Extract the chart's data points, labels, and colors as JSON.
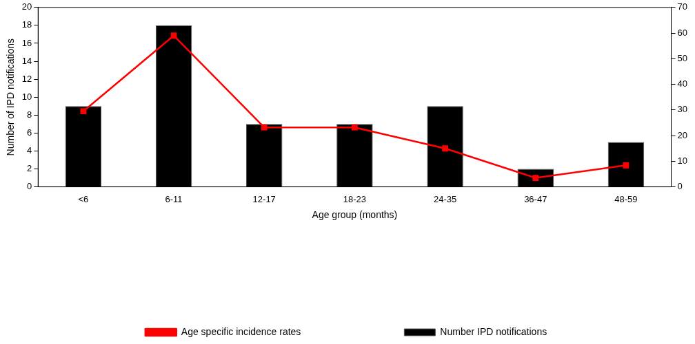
{
  "chart_data": {
    "type": "bar",
    "xlabel": "Age group (months)",
    "ylabel": "Number of IPD notifications",
    "categories": [
      "<6",
      "6-11",
      "12-17",
      "18-23",
      "24-35",
      "36-47",
      "48-59"
    ],
    "series": [
      {
        "name": "Number IPD notifications",
        "color": "#000000",
        "values": [
          9,
          18,
          7,
          7,
          9,
          2,
          5
        ]
      },
      {
        "name": "Age specific incidence rates",
        "type": "line",
        "axis": "y2",
        "color": "#ff0000",
        "marker": "square",
        "values": [
          29.5,
          59,
          23.2,
          23.2,
          15,
          3.5,
          8.4
        ]
      }
    ],
    "ylim": [
      0,
      20
    ],
    "yticks": [
      0,
      2,
      4,
      6,
      8,
      10,
      12,
      14,
      16,
      18,
      20
    ],
    "y2lim": [
      0,
      70
    ],
    "y2ticks": [
      0,
      10,
      20,
      30,
      40,
      50,
      60,
      70
    ],
    "grid": false,
    "legend": "bottom"
  }
}
